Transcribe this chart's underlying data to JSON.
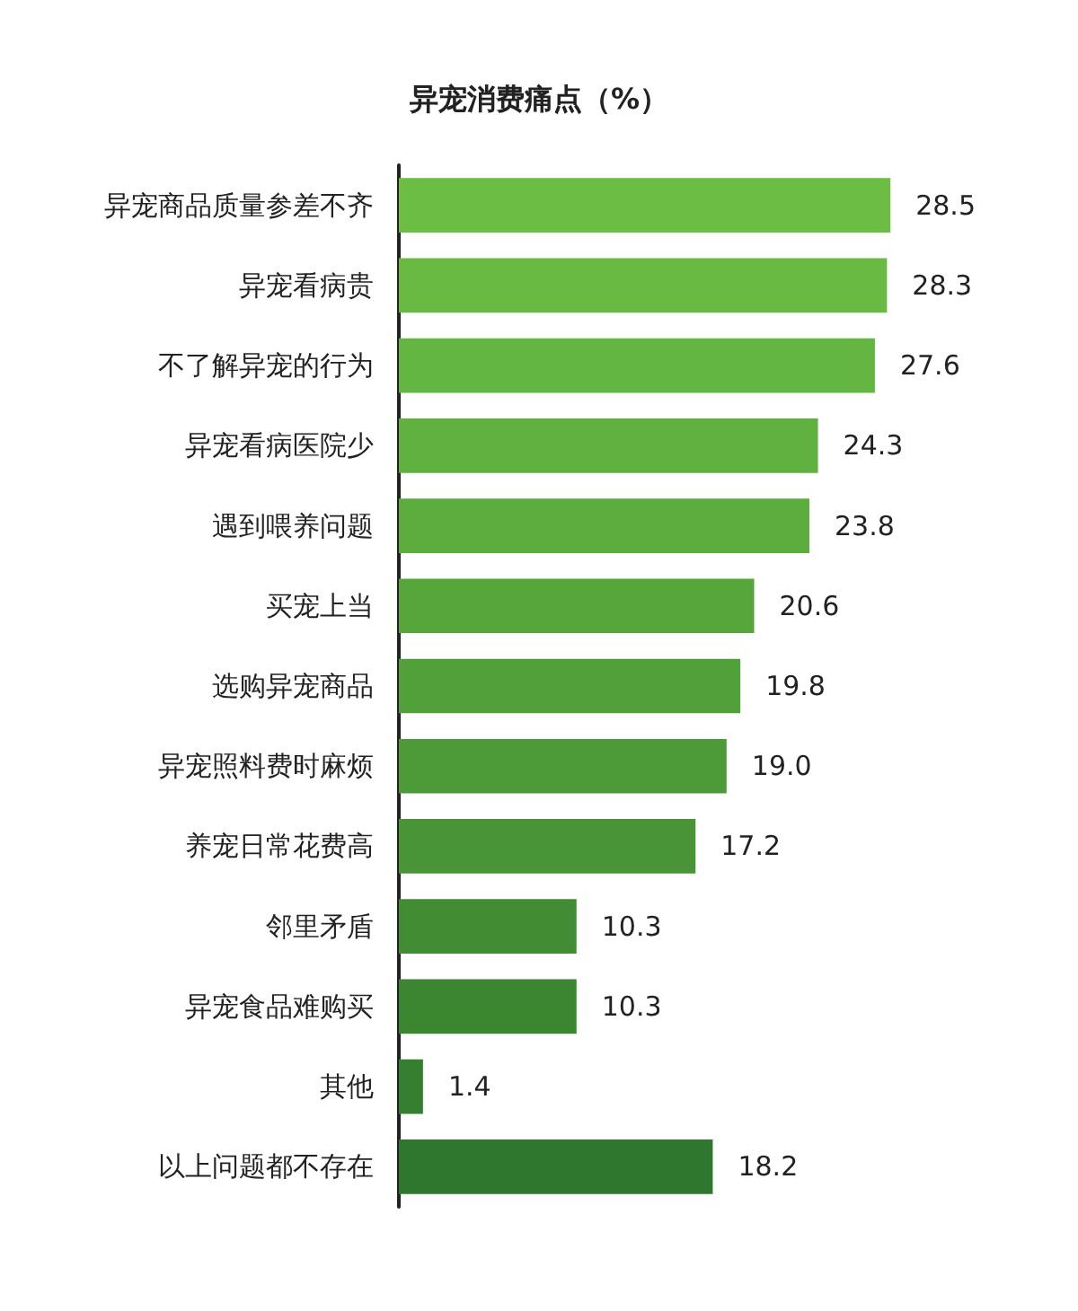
{
  "chart_data": {
    "type": "bar",
    "orientation": "horizontal",
    "title": "异宠消费痛点（%）",
    "categories": [
      "异宠商品质量参差不齐",
      "异宠看病贵",
      "不了解异宠的行为",
      "异宠看病医院少",
      "遇到喂养问题",
      "买宠上当",
      "选购异宠商品",
      "异宠照料费时麻烦",
      "养宠日常花费高",
      "邻里矛盾",
      "异宠食品难购买",
      "其他",
      "以上问题都不存在"
    ],
    "values": [
      28.5,
      28.3,
      27.6,
      24.3,
      23.8,
      20.6,
      19.8,
      19.0,
      17.2,
      10.3,
      10.3,
      1.4,
      18.2
    ],
    "colors": [
      "#6bbd44",
      "#68ba43",
      "#64b642",
      "#60b140",
      "#5cac3e",
      "#57a63c",
      "#52a03a",
      "#4d9a38",
      "#489436",
      "#428d34",
      "#3c8632",
      "#367f30",
      "#2f772e"
    ],
    "value_labels": [
      "28.5",
      "28.3",
      "27.6",
      "24.3",
      "23.8",
      "20.6",
      "19.8",
      "19.0",
      "17.2",
      "10.3",
      "10.3",
      "1.4",
      "18.2"
    ],
    "grid": false
  }
}
